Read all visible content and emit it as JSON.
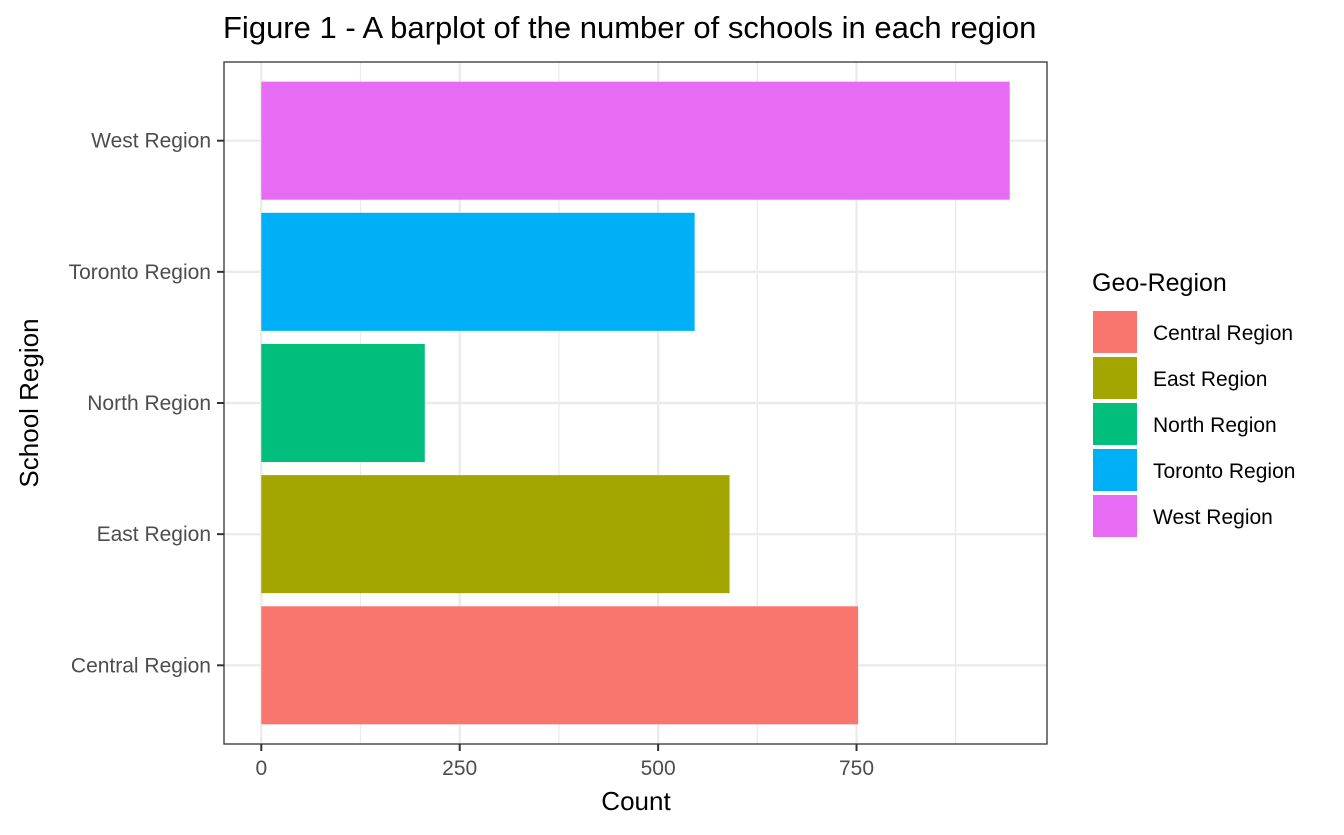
{
  "chart_data": {
    "type": "bar",
    "orientation": "horizontal",
    "title": "Figure 1 - A barplot of the number of schools in each region",
    "xlabel": "Count",
    "ylabel": "School Region",
    "categories": [
      "Central Region",
      "East Region",
      "North Region",
      "Toronto Region",
      "West Region"
    ],
    "values": [
      752,
      590,
      206,
      546,
      943
    ],
    "colors": [
      "#F8766D",
      "#A3A500",
      "#00BF7D",
      "#00B0F6",
      "#E76BF3"
    ],
    "xlim": [
      -47,
      990
    ],
    "xticks": [
      0,
      250,
      500,
      750
    ],
    "xtick_labels": [
      "0",
      "250",
      "500",
      "750"
    ],
    "grid": true,
    "legend": {
      "title": "Geo-Region",
      "position": "right",
      "entries": [
        "Central Region",
        "East Region",
        "North Region",
        "Toronto Region",
        "West Region"
      ]
    }
  }
}
